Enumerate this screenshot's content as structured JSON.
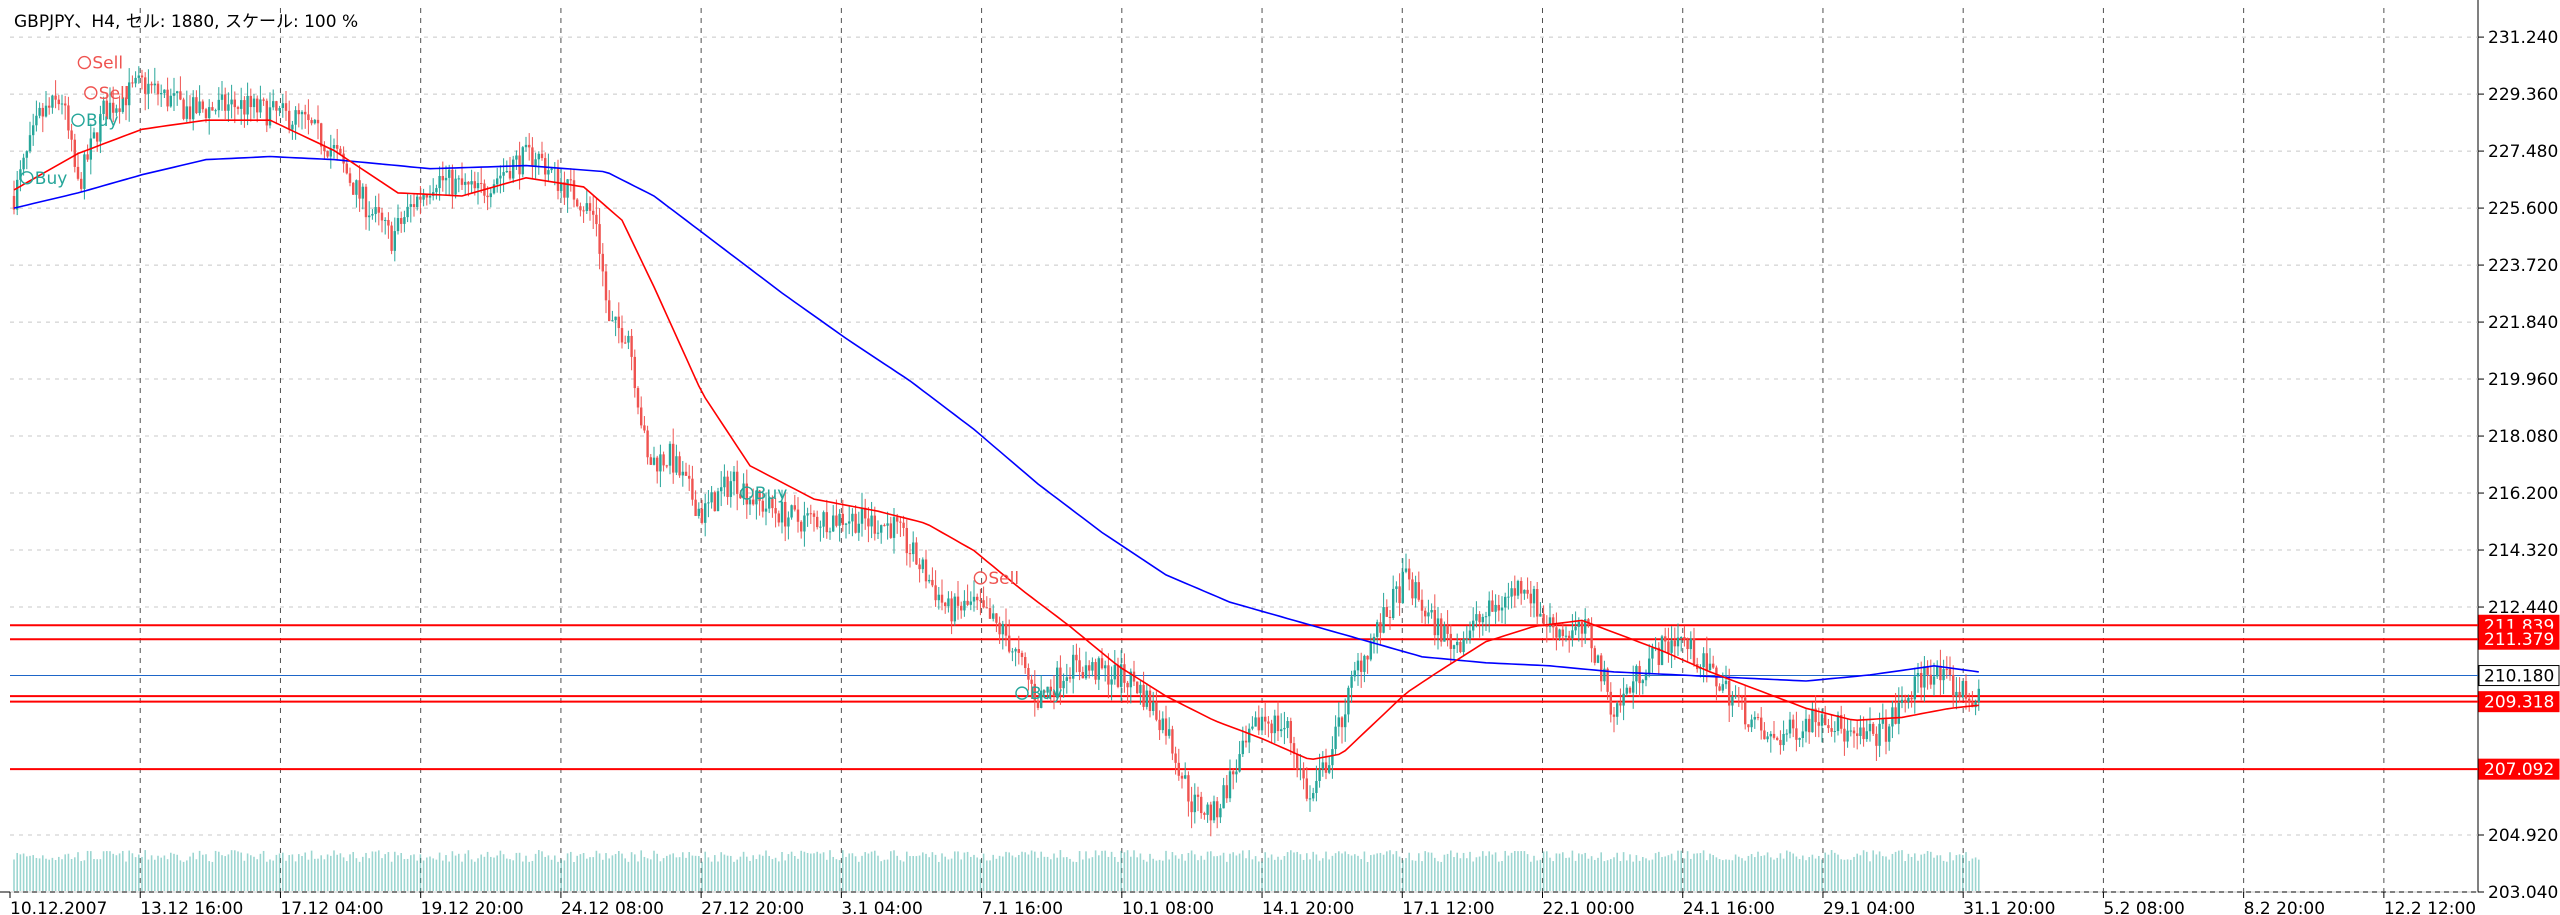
{
  "window": {
    "title": "GBPJPY、H4, セル: 1880, スケール: 100 %"
  },
  "colors": {
    "background": "#ffffff",
    "grid": "#c8c8c8",
    "bull_candle": "#26a69a",
    "bear_candle": "#ef5350",
    "ma_fast": "#ff0000",
    "ma_slow": "#0000ff",
    "level_line": "#ff0000",
    "current_price_line": "#1e66c8",
    "volume": "#26a69a",
    "axis_text": "#000000",
    "label_bg_red": "#ff0000",
    "label_bg_blue": "#0000c8"
  },
  "chart_data": {
    "type": "candlestick",
    "symbol": "GBPJPY",
    "timeframe": "H4",
    "ylim": [
      203.04,
      232.2
    ],
    "y_ticks": [
      "231.240",
      "229.360",
      "227.480",
      "225.600",
      "223.720",
      "221.840",
      "219.960",
      "218.080",
      "216.200",
      "214.320",
      "212.440",
      "204.920",
      "203.040"
    ],
    "x_ticks": [
      "10.12.2007",
      "13.12 16:00",
      "17.12 04:00",
      "19.12 20:00",
      "24.12 08:00",
      "27.12 20:00",
      "3.1 04:00",
      "7.1 16:00",
      "10.1 08:00",
      "14.1 20:00",
      "17.1 12:00",
      "22.1 00:00",
      "24.1 16:00",
      "29.1 04:00",
      "31.1 20:00",
      "5.2 08:00",
      "8.2 20:00",
      "12.2 12:00"
    ],
    "price_labels": [
      {
        "text": "211.839",
        "value": 211.839,
        "style": "red"
      },
      {
        "text": "211.379",
        "value": 211.379,
        "style": "red"
      },
      {
        "text": "210.180",
        "value": 210.18,
        "style": "current"
      },
      {
        "text": "209.318",
        "value": 209.318,
        "style": "red"
      },
      {
        "text": "207.092",
        "value": 207.092,
        "style": "red"
      }
    ],
    "horizontal_levels": [
      211.839,
      211.379,
      209.5,
      209.318,
      207.092
    ],
    "current_price": 210.18,
    "close_path": [
      [
        0,
        226.0
      ],
      [
        8,
        228.6
      ],
      [
        15,
        229.2
      ],
      [
        20,
        226.3
      ],
      [
        28,
        228.8
      ],
      [
        40,
        229.7
      ],
      [
        55,
        228.8
      ],
      [
        70,
        229.0
      ],
      [
        90,
        228.5
      ],
      [
        100,
        227.5
      ],
      [
        108,
        226.0
      ],
      [
        118,
        224.6
      ],
      [
        125,
        225.8
      ],
      [
        132,
        226.6
      ],
      [
        145,
        226.1
      ],
      [
        155,
        227.0
      ],
      [
        163,
        227.4
      ],
      [
        170,
        226.5
      ],
      [
        176,
        226.0
      ],
      [
        182,
        225.2
      ],
      [
        186,
        221.7
      ],
      [
        192,
        221.5
      ],
      [
        198,
        217.2
      ],
      [
        205,
        217.4
      ],
      [
        215,
        215.5
      ],
      [
        225,
        216.7
      ],
      [
        232,
        215.9
      ],
      [
        245,
        215.3
      ],
      [
        260,
        215.4
      ],
      [
        275,
        215.1
      ],
      [
        285,
        213.5
      ],
      [
        292,
        212.3
      ],
      [
        300,
        212.5
      ],
      [
        310,
        211.5
      ],
      [
        320,
        209.4
      ],
      [
        330,
        210.5
      ],
      [
        340,
        210.3
      ],
      [
        350,
        210.0
      ],
      [
        360,
        208.5
      ],
      [
        368,
        206.0
      ],
      [
        375,
        205.6
      ],
      [
        382,
        207.2
      ],
      [
        390,
        208.8
      ],
      [
        398,
        208.4
      ],
      [
        405,
        206.0
      ],
      [
        412,
        207.8
      ],
      [
        420,
        210.5
      ],
      [
        428,
        212.0
      ],
      [
        435,
        213.4
      ],
      [
        442,
        212.1
      ],
      [
        450,
        211.2
      ],
      [
        458,
        212.0
      ],
      [
        465,
        212.6
      ],
      [
        472,
        213.3
      ],
      [
        478,
        212.0
      ],
      [
        485,
        211.6
      ],
      [
        492,
        211.6
      ],
      [
        500,
        209.0
      ],
      [
        510,
        210.6
      ],
      [
        520,
        211.5
      ],
      [
        528,
        210.5
      ],
      [
        538,
        209.4
      ],
      [
        548,
        208.0
      ],
      [
        555,
        208.3
      ],
      [
        565,
        209.0
      ],
      [
        575,
        208.0
      ],
      [
        585,
        208.4
      ],
      [
        592,
        209.5
      ],
      [
        598,
        210.4
      ],
      [
        606,
        209.8
      ],
      [
        614,
        209.3
      ]
    ],
    "ma_fast_path": [
      [
        0,
        226.2
      ],
      [
        20,
        227.4
      ],
      [
        40,
        228.2
      ],
      [
        60,
        228.5
      ],
      [
        80,
        228.5
      ],
      [
        100,
        227.5
      ],
      [
        120,
        226.1
      ],
      [
        140,
        226.0
      ],
      [
        160,
        226.6
      ],
      [
        178,
        226.3
      ],
      [
        190,
        225.2
      ],
      [
        200,
        223.0
      ],
      [
        215,
        219.5
      ],
      [
        230,
        217.1
      ],
      [
        250,
        216.0
      ],
      [
        270,
        215.6
      ],
      [
        285,
        215.2
      ],
      [
        300,
        214.3
      ],
      [
        315,
        213.0
      ],
      [
        330,
        211.8
      ],
      [
        345,
        210.5
      ],
      [
        360,
        209.5
      ],
      [
        375,
        208.7
      ],
      [
        390,
        208.1
      ],
      [
        405,
        207.4
      ],
      [
        415,
        207.6
      ],
      [
        425,
        208.6
      ],
      [
        435,
        209.6
      ],
      [
        445,
        210.3
      ],
      [
        460,
        211.3
      ],
      [
        475,
        211.8
      ],
      [
        490,
        212.0
      ],
      [
        500,
        211.6
      ],
      [
        515,
        211.0
      ],
      [
        530,
        210.3
      ],
      [
        545,
        209.7
      ],
      [
        560,
        209.1
      ],
      [
        575,
        208.7
      ],
      [
        590,
        208.8
      ],
      [
        605,
        209.1
      ],
      [
        614,
        209.2
      ]
    ],
    "ma_slow_path": [
      [
        0,
        225.6
      ],
      [
        20,
        226.1
      ],
      [
        40,
        226.7
      ],
      [
        60,
        227.2
      ],
      [
        80,
        227.3
      ],
      [
        100,
        227.2
      ],
      [
        130,
        226.9
      ],
      [
        160,
        227.0
      ],
      [
        185,
        226.8
      ],
      [
        200,
        226.0
      ],
      [
        220,
        224.4
      ],
      [
        240,
        222.8
      ],
      [
        260,
        221.3
      ],
      [
        280,
        219.9
      ],
      [
        300,
        218.3
      ],
      [
        320,
        216.5
      ],
      [
        340,
        214.9
      ],
      [
        360,
        213.5
      ],
      [
        380,
        212.6
      ],
      [
        400,
        212.0
      ],
      [
        420,
        211.4
      ],
      [
        440,
        210.8
      ],
      [
        460,
        210.6
      ],
      [
        480,
        210.5
      ],
      [
        500,
        210.3
      ],
      [
        520,
        210.2
      ],
      [
        540,
        210.1
      ],
      [
        560,
        210.0
      ],
      [
        580,
        210.2
      ],
      [
        600,
        210.5
      ],
      [
        614,
        210.3
      ]
    ],
    "signals": [
      {
        "label": "Sell",
        "x_bar": 22,
        "value": 230.4,
        "type": "sell"
      },
      {
        "label": "Sell",
        "x_bar": 24,
        "value": 229.4,
        "type": "sell"
      },
      {
        "label": "Buy",
        "x_bar": 20,
        "value": 228.5,
        "type": "buy"
      },
      {
        "label": "Buy",
        "x_bar": 4,
        "value": 226.6,
        "type": "buy"
      },
      {
        "label": "Buy",
        "x_bar": 229,
        "value": 216.2,
        "type": "buy"
      },
      {
        "label": "Sell",
        "x_bar": 302,
        "value": 213.4,
        "type": "sell"
      },
      {
        "label": "Buy",
        "x_bar": 315,
        "value": 209.6,
        "type": "buy"
      }
    ]
  }
}
